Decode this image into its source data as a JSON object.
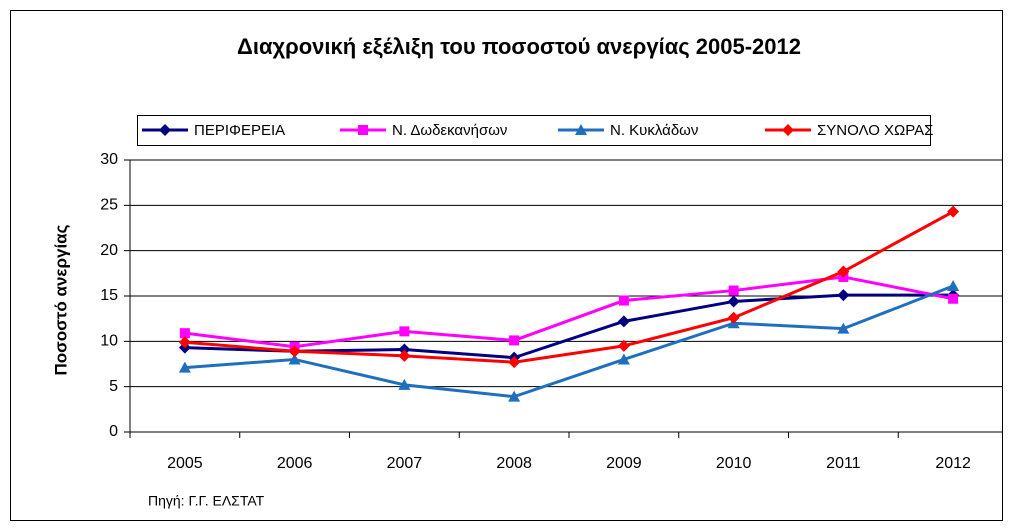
{
  "chart_data": {
    "type": "line",
    "title": "Διαχρονική εξέλιξη του ποσοστού ανεργίας 2005-2012",
    "y_label": "Ποσοστό ανεργίας",
    "source": "Πηγή: Γ.Γ. ΕΛΣΤΑΤ",
    "categories": [
      "2005",
      "2006",
      "2007",
      "2008",
      "2009",
      "2010",
      "2011",
      "2012"
    ],
    "series": [
      {
        "name": "ΠΕΡΙΦΕΡΕΙΑ",
        "color": "#000080",
        "marker": "diamond",
        "values": [
          9.3,
          8.9,
          9.1,
          8.2,
          12.2,
          14.4,
          15.1,
          15.1
        ]
      },
      {
        "name": "Ν. Δωδεκανήσων",
        "color": "#ff00ff",
        "marker": "square",
        "values": [
          10.9,
          9.4,
          11.1,
          10.1,
          14.5,
          15.6,
          17.1,
          14.7
        ]
      },
      {
        "name": "Ν. Κυκλάδων",
        "color": "#1f6fbf",
        "marker": "triangle",
        "values": [
          7.1,
          8.0,
          5.2,
          3.9,
          8.0,
          12.0,
          11.4,
          16.1
        ]
      },
      {
        "name": "ΣΥΝΟΛΟ ΧΩΡΑΣ",
        "color": "#ff0000",
        "marker": "diamond",
        "values": [
          9.9,
          8.9,
          8.4,
          7.7,
          9.5,
          12.6,
          17.7,
          24.3
        ]
      }
    ],
    "ylim": [
      0,
      30
    ],
    "yticks": [
      0,
      5,
      10,
      15,
      20,
      25,
      30
    ],
    "grid": true,
    "legend": "top"
  }
}
